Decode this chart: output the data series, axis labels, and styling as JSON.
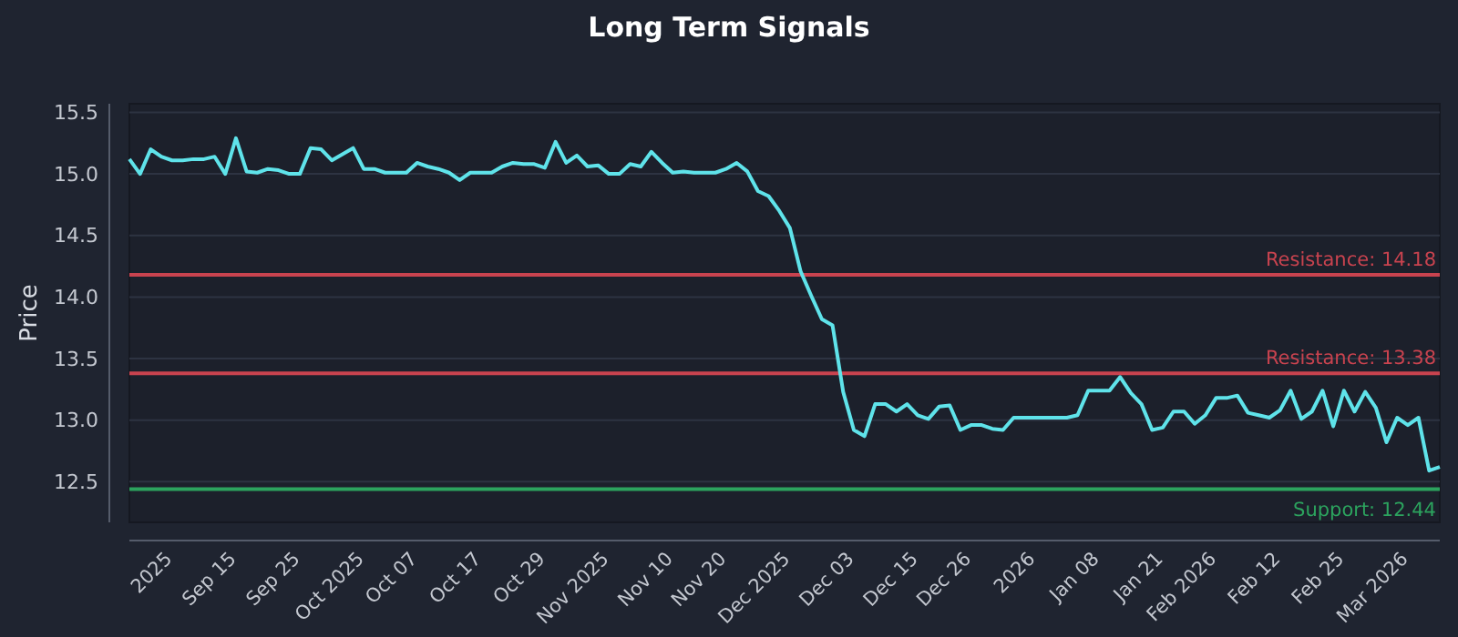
{
  "chart_data": {
    "type": "line",
    "title": "Long Term Signals",
    "ylabel": "Price",
    "categories": [
      null,
      null,
      null,
      null,
      "2025",
      null,
      null,
      null,
      null,
      null,
      "Sep 15",
      null,
      null,
      null,
      null,
      null,
      "Sep 25",
      null,
      null,
      null,
      null,
      null,
      "Oct 2025",
      null,
      null,
      null,
      null,
      "Oct 07",
      null,
      null,
      null,
      null,
      null,
      "Oct 17",
      null,
      null,
      null,
      null,
      null,
      "Oct 29",
      null,
      null,
      null,
      null,
      null,
      "Nov 2025",
      null,
      null,
      null,
      null,
      null,
      "Nov 10",
      null,
      null,
      null,
      null,
      "Nov 20",
      null,
      null,
      null,
      null,
      null,
      "Dec 2025",
      null,
      null,
      null,
      null,
      null,
      "Dec 03",
      null,
      null,
      null,
      null,
      null,
      "Dec 15",
      null,
      null,
      null,
      null,
      "Dec 26",
      null,
      null,
      null,
      null,
      null,
      "2026",
      null,
      null,
      null,
      null,
      null,
      "Jan 08",
      null,
      null,
      null,
      null,
      null,
      "Jan 21",
      null,
      null,
      null,
      null,
      "Feb 2026",
      null,
      null,
      null,
      null,
      null,
      "Feb 12",
      null,
      null,
      null,
      null,
      null,
      "Feb 25",
      null,
      null,
      null,
      null,
      null,
      "Mar 2026",
      null,
      null,
      null
    ],
    "series": [
      {
        "color": "#5fe3ea",
        "values": [
          15.12,
          15.0,
          15.2,
          15.14,
          15.11,
          15.11,
          15.12,
          15.12,
          15.14,
          15.0,
          15.29,
          15.02,
          15.01,
          15.04,
          15.03,
          15.0,
          15.0,
          15.21,
          15.2,
          15.11,
          15.16,
          15.21,
          15.04,
          15.04,
          15.01,
          15.01,
          15.01,
          15.09,
          15.06,
          15.04,
          15.01,
          14.95,
          15.01,
          15.01,
          15.01,
          15.06,
          15.09,
          15.08,
          15.08,
          15.05,
          15.26,
          15.09,
          15.15,
          15.06,
          15.07,
          15.0,
          15.0,
          15.08,
          15.06,
          15.18,
          15.09,
          15.01,
          15.02,
          15.01,
          15.01,
          15.01,
          15.04,
          15.09,
          15.02,
          14.86,
          14.82,
          14.7,
          14.56,
          14.21,
          14.01,
          13.82,
          13.77,
          13.23,
          12.92,
          12.87,
          13.13,
          13.13,
          13.07,
          13.13,
          13.04,
          13.01,
          13.11,
          13.12,
          12.92,
          12.96,
          12.96,
          12.93,
          12.92,
          13.02,
          13.02,
          13.02,
          13.02,
          13.02,
          13.02,
          13.04,
          13.24,
          13.24,
          13.24,
          13.35,
          13.22,
          13.13,
          12.92,
          12.94,
          13.07,
          13.07,
          12.97,
          13.04,
          13.18,
          13.18,
          13.2,
          13.06,
          13.04,
          13.02,
          13.08,
          13.24,
          13.01,
          13.07,
          13.24,
          12.95,
          13.24,
          13.07,
          13.23,
          13.1,
          12.82,
          13.02,
          12.96,
          13.02,
          12.59,
          12.62
        ]
      }
    ],
    "ylim": [
      12.17,
      15.57
    ],
    "yticks": [
      {
        "value": 12.5,
        "label": "12.5"
      },
      {
        "value": 13,
        "label": "13.0"
      },
      {
        "value": 13.5,
        "label": "13.5"
      },
      {
        "value": 14,
        "label": "14.0"
      },
      {
        "value": 14.5,
        "label": "14.5"
      },
      {
        "value": 15,
        "label": "15.0"
      },
      {
        "value": 15.5,
        "label": "15.5"
      }
    ],
    "grid": "y",
    "marker": "none",
    "line_style": "solid",
    "ref_lines": [
      {
        "axis": "y",
        "value": 14.18,
        "label": "Resistance: 14.18",
        "color": "#c9434f"
      },
      {
        "axis": "y",
        "value": 13.38,
        "label": "Resistance: 13.38",
        "color": "#c9434f"
      },
      {
        "axis": "y",
        "value": 12.44,
        "label": "Support: 12.44",
        "color": "#2ca35e"
      }
    ]
  }
}
